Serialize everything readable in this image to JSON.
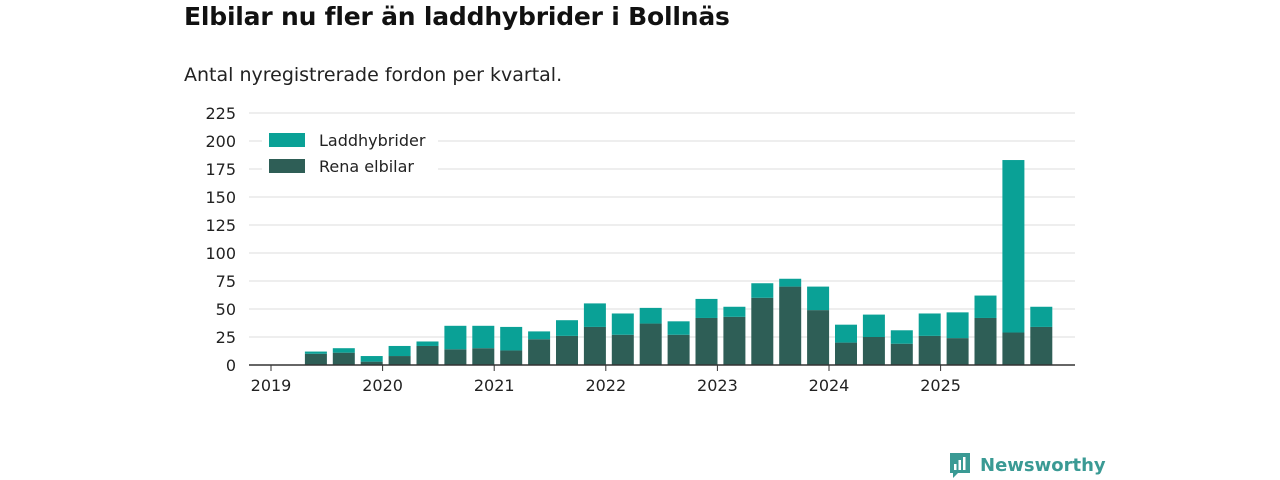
{
  "title": "Elbilar nu fler än laddhybrider i Bollnäs",
  "subtitle": "Antal nyregistrerade fordon per kvartal.",
  "brand": {
    "name": "Newsworthy"
  },
  "colors": {
    "hybrid": "#0aa196",
    "electric": "#2e5e56",
    "grid": "#dddddd",
    "axis": "#333333",
    "brand": "#3a9a94"
  },
  "chart_data": {
    "type": "bar",
    "stacked": true,
    "title": "Elbilar nu fler än laddhybrider i Bollnäs",
    "subtitle": "Antal nyregistrerade fordon per kvartal.",
    "xlabel": "",
    "ylabel": "",
    "ylim": [
      0,
      225
    ],
    "yticks": [
      "0",
      "25",
      "50",
      "75",
      "100",
      "125",
      "150",
      "175",
      "200",
      "225"
    ],
    "xticks": [
      "2019",
      "2020",
      "2021",
      "2022",
      "2023",
      "2024",
      "2025"
    ],
    "legend": {
      "position": "top-left",
      "entries": [
        "Laddhybrider",
        "Rena elbilar"
      ]
    },
    "categories": [
      "2019 Q1",
      "2019 Q2",
      "2019 Q3",
      "2019 Q4",
      "2020 Q1",
      "2020 Q2",
      "2020 Q3",
      "2020 Q4",
      "2021 Q1",
      "2021 Q2",
      "2021 Q3",
      "2021 Q4",
      "2022 Q1",
      "2022 Q2",
      "2022 Q3",
      "2022 Q4",
      "2023 Q1",
      "2023 Q2",
      "2023 Q3",
      "2023 Q4",
      "2024 Q1",
      "2024 Q2",
      "2024 Q3",
      "2024 Q4",
      "2025 Q1",
      "2025 Q2",
      "2025 Q3",
      "2025 Q4"
    ],
    "series": [
      {
        "name": "Rena elbilar",
        "values": [
          0,
          10,
          11,
          3,
          8,
          17,
          14,
          15,
          13,
          23,
          26,
          34,
          27,
          37,
          27,
          42,
          43,
          60,
          70,
          49,
          20,
          25,
          19,
          26,
          24,
          42,
          29,
          34
        ]
      },
      {
        "name": "Laddhybrider",
        "values": [
          0,
          2,
          4,
          5,
          9,
          4,
          21,
          20,
          21,
          7,
          14,
          21,
          19,
          14,
          12,
          17,
          9,
          13,
          7,
          21,
          16,
          20,
          12,
          20,
          23,
          20,
          154,
          18
        ]
      }
    ]
  }
}
